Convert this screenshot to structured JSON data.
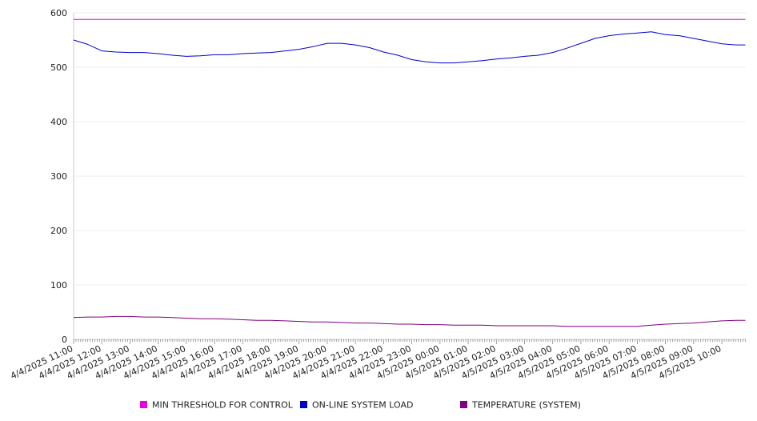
{
  "chart_data": {
    "type": "line",
    "ylim": [
      0,
      600
    ],
    "yticks": [
      "0",
      "100",
      "200",
      "300",
      "400",
      "500",
      "600"
    ],
    "x_tick_labels": [
      "4/4/2025 11:00",
      "4/4/2025 12:00",
      "4/4/2025 13:00",
      "4/4/2025 14:00",
      "4/4/2025 15:00",
      "4/4/2025 16:00",
      "4/4/2025 17:00",
      "4/4/2025 18:00",
      "4/4/2025 19:00",
      "4/4/2025 20:00",
      "4/4/2025 21:00",
      "4/4/2025 22:00",
      "4/4/2025 23:00",
      "4/5/2025 00:00",
      "4/5/2025 01:00",
      "4/5/2025 02:00",
      "4/5/2025 03:00",
      "4/5/2025 04:00",
      "4/5/2025 05:00",
      "4/5/2025 06:00",
      "4/5/2025 07:00",
      "4/5/2025 08:00",
      "4/5/2025 09:00",
      "4/5/2025 10:00"
    ],
    "x": [
      "4/4/2025 11:00",
      "4/4/2025 11:30",
      "4/4/2025 12:00",
      "4/4/2025 12:30",
      "4/4/2025 13:00",
      "4/4/2025 13:30",
      "4/4/2025 14:00",
      "4/4/2025 14:30",
      "4/4/2025 15:00",
      "4/4/2025 15:30",
      "4/4/2025 16:00",
      "4/4/2025 16:30",
      "4/4/2025 17:00",
      "4/4/2025 17:30",
      "4/4/2025 18:00",
      "4/4/2025 18:30",
      "4/4/2025 19:00",
      "4/4/2025 19:30",
      "4/4/2025 20:00",
      "4/4/2025 20:30",
      "4/4/2025 21:00",
      "4/4/2025 21:30",
      "4/4/2025 22:00",
      "4/4/2025 22:30",
      "4/4/2025 23:00",
      "4/4/2025 23:30",
      "4/5/2025 00:00",
      "4/5/2025 00:30",
      "4/5/2025 01:00",
      "4/5/2025 01:30",
      "4/5/2025 02:00",
      "4/5/2025 02:30",
      "4/5/2025 03:00",
      "4/5/2025 03:30",
      "4/5/2025 04:00",
      "4/5/2025 04:30",
      "4/5/2025 05:00",
      "4/5/2025 05:30",
      "4/5/2025 06:00",
      "4/5/2025 06:30",
      "4/5/2025 07:00",
      "4/5/2025 07:30",
      "4/5/2025 08:00",
      "4/5/2025 08:30",
      "4/5/2025 09:00",
      "4/5/2025 09:30",
      "4/5/2025 10:00",
      "4/5/2025 10:30",
      "4/5/2025 10:50"
    ],
    "series": [
      {
        "name": "MIN THRESHOLD FOR CONTROL",
        "color": "#e600e6",
        "values": [
          588,
          588,
          588,
          588,
          588,
          588,
          588,
          588,
          588,
          588,
          588,
          588,
          588,
          588,
          588,
          588,
          588,
          588,
          588,
          588,
          588,
          588,
          588,
          588,
          588,
          588,
          588,
          588,
          588,
          588,
          588,
          588,
          588,
          588,
          588,
          588,
          588,
          588,
          588,
          588,
          588,
          588,
          588,
          588,
          588,
          588,
          588,
          588,
          588
        ]
      },
      {
        "name": "ON-LINE SYSTEM LOAD",
        "color": "#0000cc",
        "values": [
          550,
          542,
          530,
          528,
          527,
          527,
          525,
          522,
          520,
          521,
          523,
          523,
          525,
          526,
          527,
          530,
          533,
          538,
          544,
          544,
          541,
          536,
          528,
          522,
          514,
          510,
          508,
          508,
          510,
          512,
          515,
          517,
          520,
          522,
          527,
          535,
          544,
          553,
          558,
          561,
          563,
          565,
          560,
          558,
          553,
          548,
          543,
          541,
          541
        ]
      },
      {
        "name": "TEMPERATURE (SYSTEM)",
        "color": "#800080",
        "values": [
          40,
          41,
          41,
          42,
          42,
          41,
          41,
          40,
          39,
          38,
          38,
          37,
          36,
          35,
          35,
          34,
          33,
          32,
          32,
          31,
          30,
          30,
          29,
          28,
          28,
          27,
          27,
          26,
          26,
          26,
          25,
          25,
          25,
          25,
          25,
          24,
          24,
          24,
          24,
          24,
          24,
          26,
          28,
          29,
          30,
          32,
          34,
          35,
          35
        ]
      }
    ],
    "grid": true,
    "legend_position": "bottom"
  }
}
